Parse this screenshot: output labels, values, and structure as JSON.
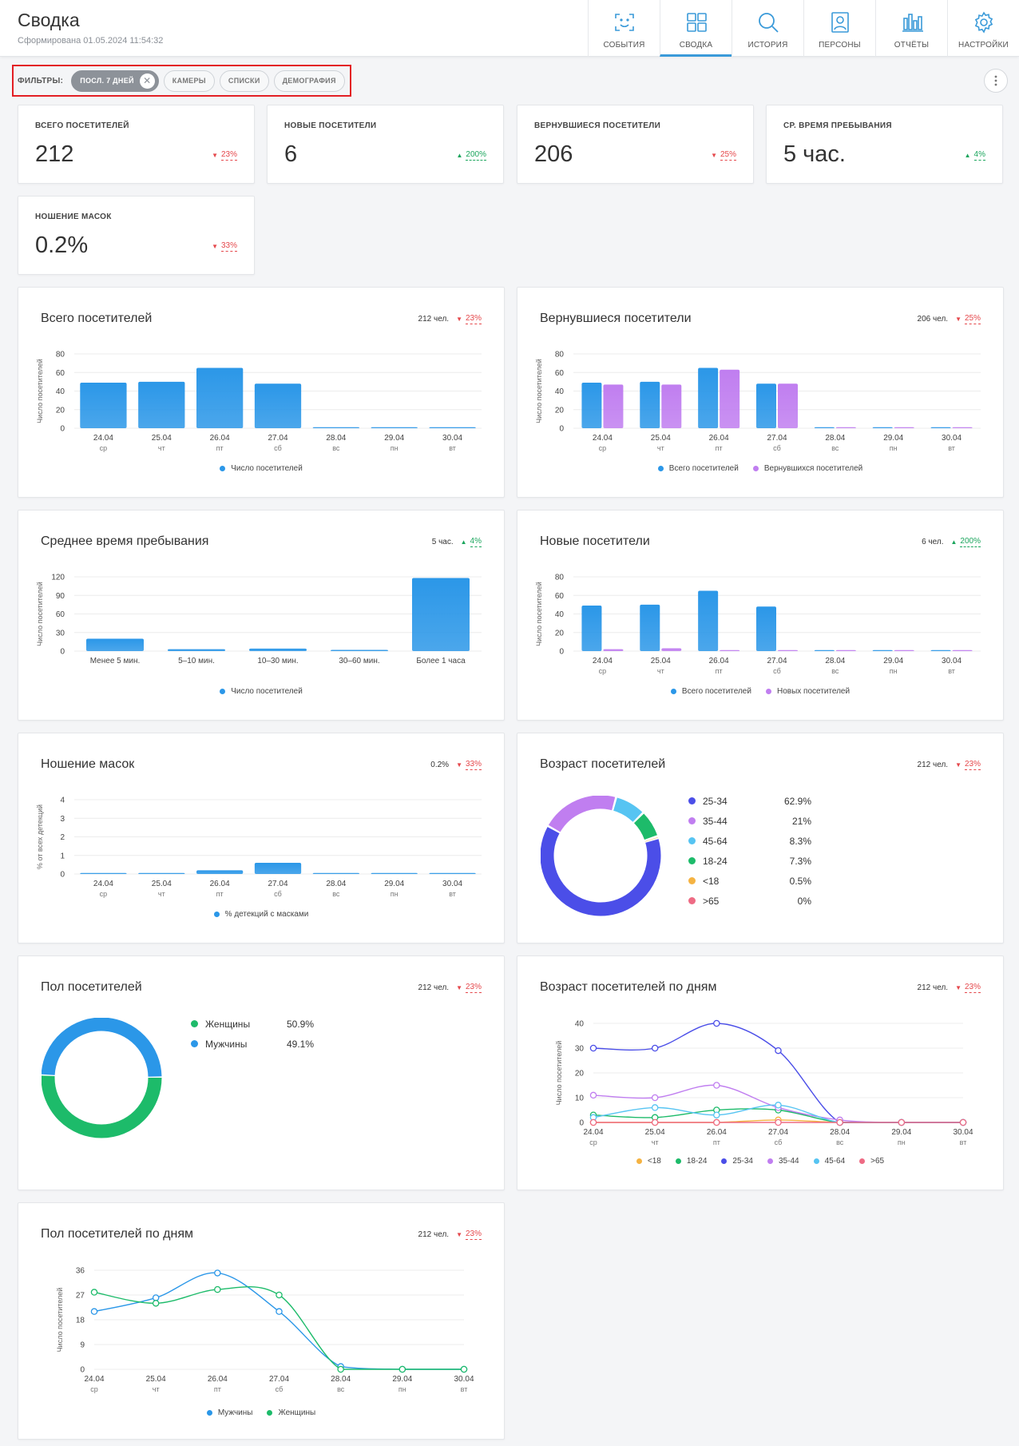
{
  "header": {
    "title": "Сводка",
    "subtitle": "Сформирована 01.05.2024 11:54:32",
    "nav": [
      {
        "label": "СОБЫТИЯ",
        "icon": "face-scan-icon"
      },
      {
        "label": "СВОДКА",
        "icon": "dashboard-icon"
      },
      {
        "label": "ИСТОРИЯ",
        "icon": "search-icon"
      },
      {
        "label": "ПЕРСОНЫ",
        "icon": "person-card-icon"
      },
      {
        "label": "ОТЧЁТЫ",
        "icon": "bar-chart-icon"
      },
      {
        "label": "НАСТРОЙКИ",
        "icon": "gear-icon"
      }
    ]
  },
  "filters": {
    "label": "ФИЛЬТРЫ:",
    "chips": [
      "ПОСЛ. 7 ДНЕЙ",
      "КАМЕРЫ",
      "СПИСКИ",
      "ДЕМОГРАФИЯ"
    ]
  },
  "stats": [
    {
      "label": "ВСЕГО ПОСЕТИТЕЛЕЙ",
      "value": "212",
      "delta": "23%",
      "dir": "down"
    },
    {
      "label": "НОВЫЕ ПОСЕТИТЕЛИ",
      "value": "6",
      "delta": "200%",
      "dir": "up"
    },
    {
      "label": "ВЕРНУВШИЕСЯ ПОСЕТИТЕЛИ",
      "value": "206",
      "delta": "25%",
      "dir": "down"
    },
    {
      "label": "СР. ВРЕМЯ ПРЕБЫВАНИЯ",
      "value": "5 час.",
      "delta": "4%",
      "dir": "up"
    },
    {
      "label": "НОШЕНИЕ МАСОК",
      "value": "0.2%",
      "delta": "33%",
      "dir": "down"
    }
  ],
  "colors": {
    "blue": "#2b97e8",
    "purple": "#c07ef0",
    "up": "#1aa55c",
    "down": "#e5474b"
  },
  "chart_data": [
    {
      "id": "total",
      "type": "bar",
      "title": "Всего посетителей",
      "total": "212 чел.",
      "delta": "23%",
      "dir": "down",
      "ylabel": "Число посетителей",
      "ylim": [
        0,
        80
      ],
      "yticks": [
        0,
        20,
        40,
        60,
        80
      ],
      "categories": [
        "24.04",
        "25.04",
        "26.04",
        "27.04",
        "28.04",
        "29.04",
        "30.04"
      ],
      "subcategories": [
        "ср",
        "чт",
        "пт",
        "сб",
        "вс",
        "пн",
        "вт"
      ],
      "series": [
        {
          "name": "Число посетителей",
          "color": "#2b97e8",
          "values": [
            49,
            50,
            65,
            48,
            1,
            1,
            1
          ]
        }
      ]
    },
    {
      "id": "returning",
      "type": "bar",
      "title": "Вернувшиеся посетители",
      "total": "206 чел.",
      "delta": "25%",
      "dir": "down",
      "ylabel": "Число посетителей",
      "ylim": [
        0,
        80
      ],
      "yticks": [
        0,
        20,
        40,
        60,
        80
      ],
      "categories": [
        "24.04",
        "25.04",
        "26.04",
        "27.04",
        "28.04",
        "29.04",
        "30.04"
      ],
      "subcategories": [
        "ср",
        "чт",
        "пт",
        "сб",
        "вс",
        "пн",
        "вт"
      ],
      "series": [
        {
          "name": "Всего посетителей",
          "color": "#2b97e8",
          "values": [
            49,
            50,
            65,
            48,
            1,
            1,
            1
          ]
        },
        {
          "name": "Вернувшихся посетителей",
          "color": "#c07ef0",
          "values": [
            47,
            47,
            63,
            48,
            1,
            1,
            1
          ]
        }
      ]
    },
    {
      "id": "avg-time",
      "type": "bar",
      "title": "Среднее время пребывания",
      "total": "5 час.",
      "delta": "4%",
      "dir": "up",
      "ylabel": "Число посетителей",
      "ylim": [
        0,
        120
      ],
      "yticks": [
        0,
        30,
        60,
        90,
        120
      ],
      "categories": [
        "Менее 5 мин.",
        "5–10 мин.",
        "10–30 мин.",
        "30–60 мин.",
        "Более 1 часа"
      ],
      "subcategories": [],
      "series": [
        {
          "name": "Число посетителей",
          "color": "#2b97e8",
          "values": [
            20,
            3,
            4,
            2,
            118
          ]
        }
      ]
    },
    {
      "id": "new",
      "type": "bar",
      "title": "Новые посетители",
      "total": "6 чел.",
      "delta": "200%",
      "dir": "up",
      "ylabel": "Число посетителей",
      "ylim": [
        0,
        80
      ],
      "yticks": [
        0,
        20,
        40,
        60,
        80
      ],
      "categories": [
        "24.04",
        "25.04",
        "26.04",
        "27.04",
        "28.04",
        "29.04",
        "30.04"
      ],
      "subcategories": [
        "ср",
        "чт",
        "пт",
        "сб",
        "вс",
        "пн",
        "вт"
      ],
      "series": [
        {
          "name": "Всего посетителей",
          "color": "#2b97e8",
          "values": [
            49,
            50,
            65,
            48,
            1,
            1,
            1
          ]
        },
        {
          "name": "Новых посетителей",
          "color": "#c07ef0",
          "values": [
            2,
            3,
            1,
            1,
            1,
            1,
            1
          ]
        }
      ]
    },
    {
      "id": "masks",
      "type": "bar",
      "title": "Ношение масок",
      "total": "0.2%",
      "delta": "33%",
      "dir": "down",
      "ylabel": "% от всех детекций",
      "ylim": [
        0,
        4
      ],
      "yticks": [
        0,
        1,
        2,
        3,
        4
      ],
      "categories": [
        "24.04",
        "25.04",
        "26.04",
        "27.04",
        "28.04",
        "29.04",
        "30.04"
      ],
      "subcategories": [
        "ср",
        "чт",
        "пт",
        "сб",
        "вс",
        "пн",
        "вт"
      ],
      "series": [
        {
          "name": "% детекций с масками",
          "color": "#2b97e8",
          "values": [
            0.02,
            0.02,
            0.2,
            0.6,
            0.02,
            0.02,
            0.02
          ]
        }
      ]
    },
    {
      "id": "age",
      "type": "pie",
      "title": "Возраст посетителей",
      "total": "212 чел.",
      "delta": "23%",
      "dir": "down",
      "slices": [
        {
          "name": "25-34",
          "pct": "62.9%",
          "value": 62.9,
          "color": "#4b4ee8"
        },
        {
          "name": "35-44",
          "pct": "21%",
          "value": 21,
          "color": "#c07ef0"
        },
        {
          "name": "45-64",
          "pct": "8.3%",
          "value": 8.3,
          "color": "#56c4f2"
        },
        {
          "name": "18-24",
          "pct": "7.3%",
          "value": 7.3,
          "color": "#1dbb6a"
        },
        {
          "name": "<18",
          "pct": "0.5%",
          "value": 0.5,
          "color": "#f5b342"
        },
        {
          "name": ">65",
          "pct": "0%",
          "value": 0,
          "color": "#ee6b84"
        }
      ]
    },
    {
      "id": "gender",
      "type": "pie",
      "title": "Пол посетителей",
      "total": "212 чел.",
      "delta": "23%",
      "dir": "down",
      "slices": [
        {
          "name": "Женщины",
          "pct": "50.9%",
          "value": 50.9,
          "color": "#1dbb6a"
        },
        {
          "name": "Мужчины",
          "pct": "49.1%",
          "value": 49.1,
          "color": "#2b97e8"
        }
      ]
    },
    {
      "id": "age-by-day",
      "type": "line",
      "title": "Возраст посетителей по дням",
      "total": "212 чел.",
      "delta": "23%",
      "dir": "down",
      "ylabel": "Число посетителей",
      "ylim": [
        0,
        40
      ],
      "yticks": [
        0,
        10,
        20,
        30,
        40
      ],
      "categories": [
        "24.04",
        "25.04",
        "26.04",
        "27.04",
        "28.04",
        "29.04",
        "30.04"
      ],
      "subcategories": [
        "ср",
        "чт",
        "пт",
        "сб",
        "вс",
        "пн",
        "вт"
      ],
      "series": [
        {
          "name": "<18",
          "color": "#f5b342",
          "values": [
            0,
            0,
            0,
            1,
            0,
            0,
            0
          ]
        },
        {
          "name": "18-24",
          "color": "#1dbb6a",
          "values": [
            3,
            2,
            5,
            5,
            0,
            0,
            0
          ]
        },
        {
          "name": "25-34",
          "color": "#4b4ee8",
          "values": [
            30,
            30,
            40,
            29,
            0,
            0,
            0
          ]
        },
        {
          "name": "35-44",
          "color": "#c07ef0",
          "values": [
            11,
            10,
            15,
            6,
            1,
            0,
            0
          ]
        },
        {
          "name": "45-64",
          "color": "#56c4f2",
          "values": [
            2,
            6,
            3,
            7,
            0,
            0,
            0
          ]
        },
        {
          "name": ">65",
          "color": "#ee6b84",
          "values": [
            0,
            0,
            0,
            0,
            0,
            0,
            0
          ]
        }
      ]
    },
    {
      "id": "gender-by-day",
      "type": "line",
      "title": "Пол посетителей по дням",
      "total": "212 чел.",
      "delta": "23%",
      "dir": "down",
      "ylabel": "Число посетителей",
      "ylim": [
        0,
        36
      ],
      "yticks": [
        0,
        9,
        18,
        27,
        36
      ],
      "categories": [
        "24.04",
        "25.04",
        "26.04",
        "27.04",
        "28.04",
        "29.04",
        "30.04"
      ],
      "subcategories": [
        "ср",
        "чт",
        "пт",
        "сб",
        "вс",
        "пн",
        "вт"
      ],
      "series": [
        {
          "name": "Мужчины",
          "color": "#2b97e8",
          "values": [
            21,
            26,
            35,
            21,
            1,
            0,
            0
          ]
        },
        {
          "name": "Женщины",
          "color": "#1dbb6a",
          "values": [
            28,
            24,
            29,
            27,
            0,
            0,
            0
          ]
        }
      ]
    }
  ]
}
